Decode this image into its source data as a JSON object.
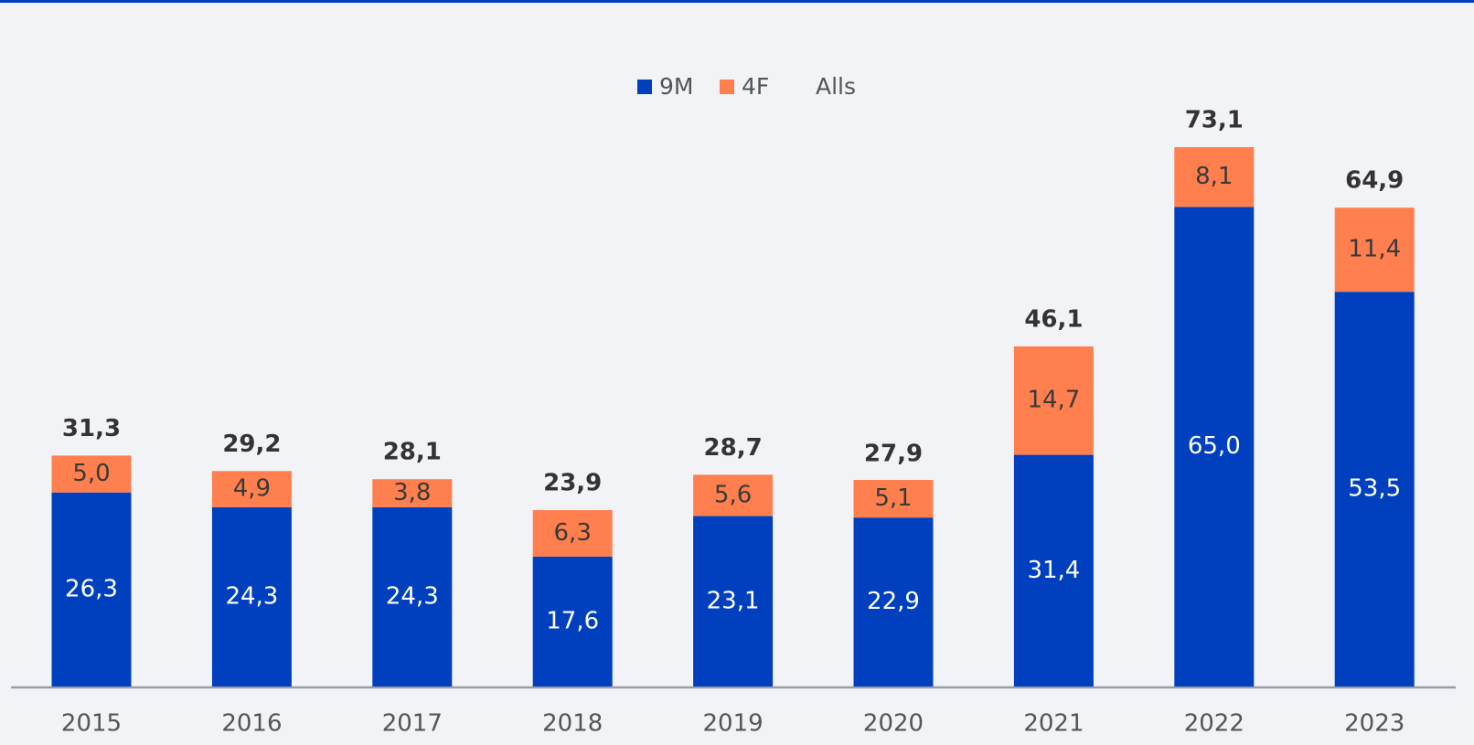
{
  "chart_data": {
    "type": "stacked_bar",
    "categories": [
      "2015",
      "2016",
      "2017",
      "2018",
      "2019",
      "2020",
      "2021",
      "2022",
      "2023"
    ],
    "series": [
      {
        "name": "9M",
        "color": "#0040bf",
        "values": [
          26.3,
          24.3,
          24.3,
          17.6,
          23.1,
          22.9,
          31.4,
          65.0,
          53.5
        ],
        "value_labels": [
          "26,3",
          "24,3",
          "24,3",
          "17,6",
          "23,1",
          "22,9",
          "31,4",
          "65,0",
          "53,5"
        ]
      },
      {
        "name": "4F",
        "color": "#ff7f4f",
        "values": [
          5.0,
          4.9,
          3.8,
          6.3,
          5.6,
          5.1,
          14.7,
          8.1,
          11.4
        ],
        "value_labels": [
          "5,0",
          "4,9",
          "3,8",
          "6,3",
          "5,6",
          "5,1",
          "14,7",
          "8,1",
          "11,4"
        ]
      }
    ],
    "totals": {
      "name": "Alls",
      "values": [
        31.3,
        29.2,
        28.1,
        23.9,
        28.7,
        27.9,
        46.1,
        73.1,
        64.9
      ],
      "value_labels": [
        "31,3",
        "29,2",
        "28,1",
        "23,9",
        "28,7",
        "27,9",
        "46,1",
        "73,1",
        "64,9"
      ]
    }
  }
}
